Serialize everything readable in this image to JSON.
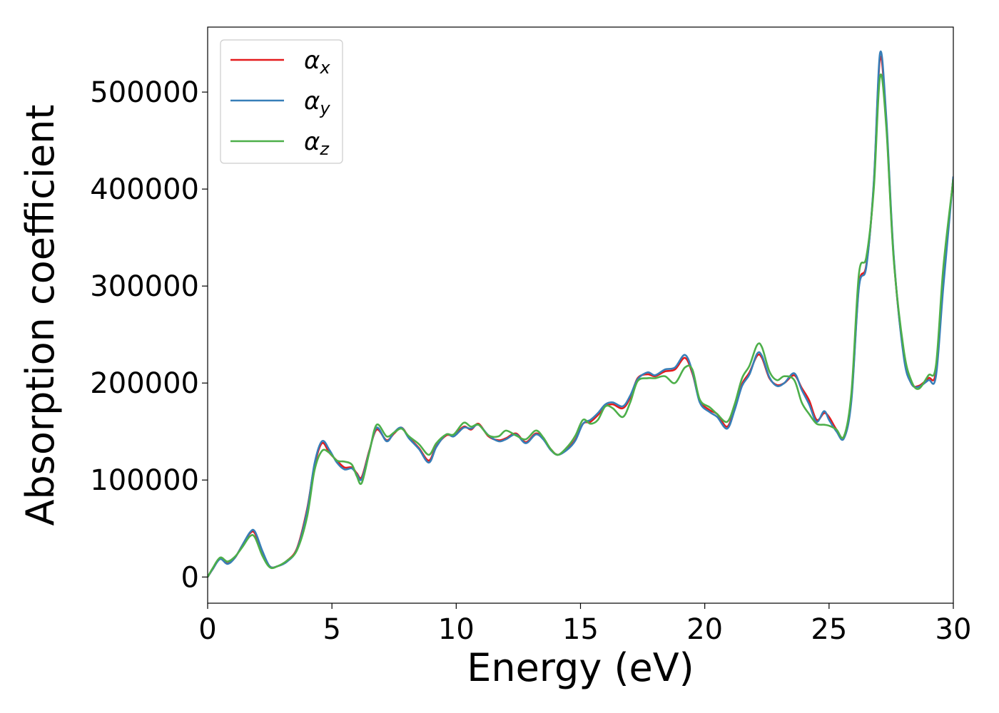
{
  "chart_data": {
    "type": "line",
    "title": "",
    "xlabel": "Energy (eV)",
    "ylabel": "Absorption coefficient",
    "xlim": [
      0,
      30
    ],
    "ylim": [
      -27000,
      567000
    ],
    "xticks": [
      0,
      5,
      10,
      15,
      20,
      25,
      30
    ],
    "xtick_labels": [
      "0",
      "5",
      "10",
      "15",
      "20",
      "25",
      "30"
    ],
    "yticks": [
      0,
      100000,
      200000,
      300000,
      400000,
      500000
    ],
    "ytick_labels": [
      "0",
      "100000",
      "200000",
      "300000",
      "400000",
      "500000"
    ],
    "grid": false,
    "legend_position": "top-left",
    "series": [
      {
        "name": "α",
        "sub": "x",
        "color": "#e41a1c",
        "points": [
          [
            0,
            0
          ],
          [
            0.2,
            8000
          ],
          [
            0.5,
            19000
          ],
          [
            0.8,
            14000
          ],
          [
            1.1,
            20000
          ],
          [
            1.4,
            33000
          ],
          [
            1.7,
            45000
          ],
          [
            1.9,
            45000
          ],
          [
            2.2,
            25000
          ],
          [
            2.5,
            11000
          ],
          [
            2.8,
            11000
          ],
          [
            3.2,
            17000
          ],
          [
            3.6,
            30000
          ],
          [
            4.0,
            70000
          ],
          [
            4.3,
            115000
          ],
          [
            4.6,
            138000
          ],
          [
            4.9,
            128000
          ],
          [
            5.2,
            120000
          ],
          [
            5.5,
            113000
          ],
          [
            5.8,
            113000
          ],
          [
            6.0,
            107000
          ],
          [
            6.2,
            103000
          ],
          [
            6.5,
            130000
          ],
          [
            6.8,
            152000
          ],
          [
            7.2,
            141000
          ],
          [
            7.5,
            148000
          ],
          [
            7.8,
            154000
          ],
          [
            8.1,
            144000
          ],
          [
            8.5,
            133000
          ],
          [
            8.9,
            120000
          ],
          [
            9.2,
            135000
          ],
          [
            9.6,
            146000
          ],
          [
            9.9,
            146000
          ],
          [
            10.3,
            155000
          ],
          [
            10.6,
            152000
          ],
          [
            10.9,
            158000
          ],
          [
            11.3,
            145000
          ],
          [
            11.7,
            141000
          ],
          [
            12.0,
            143000
          ],
          [
            12.4,
            148000
          ],
          [
            12.8,
            139000
          ],
          [
            13.2,
            148000
          ],
          [
            13.5,
            143000
          ],
          [
            13.8,
            132000
          ],
          [
            14.1,
            126000
          ],
          [
            14.5,
            133000
          ],
          [
            14.8,
            142000
          ],
          [
            15.1,
            158000
          ],
          [
            15.4,
            160000
          ],
          [
            15.7,
            167000
          ],
          [
            16.0,
            176000
          ],
          [
            16.3,
            178000
          ],
          [
            16.7,
            174000
          ],
          [
            17.0,
            185000
          ],
          [
            17.3,
            205000
          ],
          [
            17.7,
            209000
          ],
          [
            18.0,
            207000
          ],
          [
            18.4,
            212000
          ],
          [
            18.8,
            214000
          ],
          [
            19.2,
            226000
          ],
          [
            19.5,
            210000
          ],
          [
            19.8,
            182000
          ],
          [
            20.2,
            172000
          ],
          [
            20.5,
            168000
          ],
          [
            20.9,
            155000
          ],
          [
            21.2,
            174000
          ],
          [
            21.5,
            199000
          ],
          [
            21.8,
            211000
          ],
          [
            22.1,
            228000
          ],
          [
            22.3,
            226000
          ],
          [
            22.6,
            205000
          ],
          [
            22.9,
            198000
          ],
          [
            23.2,
            200000
          ],
          [
            23.6,
            208000
          ],
          [
            23.9,
            195000
          ],
          [
            24.2,
            182000
          ],
          [
            24.5,
            162000
          ],
          [
            24.8,
            169000
          ],
          [
            25.0,
            165000
          ],
          [
            25.3,
            152000
          ],
          [
            25.6,
            145000
          ],
          [
            25.9,
            185000
          ],
          [
            26.2,
            300000
          ],
          [
            26.5,
            322000
          ],
          [
            26.8,
            405000
          ],
          [
            27.05,
            535000
          ],
          [
            27.3,
            470000
          ],
          [
            27.6,
            330000
          ],
          [
            28.0,
            230000
          ],
          [
            28.3,
            200000
          ],
          [
            28.6,
            197000
          ],
          [
            29.0,
            205000
          ],
          [
            29.3,
            212000
          ],
          [
            29.6,
            310000
          ],
          [
            30.0,
            412000
          ]
        ]
      },
      {
        "name": "α",
        "sub": "y",
        "color": "#377eb8",
        "points": [
          [
            0,
            0
          ],
          [
            0.2,
            8000
          ],
          [
            0.5,
            18500
          ],
          [
            0.8,
            13500
          ],
          [
            1.1,
            20000
          ],
          [
            1.4,
            33000
          ],
          [
            1.7,
            46000
          ],
          [
            1.9,
            47000
          ],
          [
            2.2,
            27000
          ],
          [
            2.5,
            11000
          ],
          [
            2.8,
            11000
          ],
          [
            3.2,
            16000
          ],
          [
            3.6,
            29000
          ],
          [
            4.0,
            68000
          ],
          [
            4.3,
            117000
          ],
          [
            4.6,
            140000
          ],
          [
            4.9,
            131000
          ],
          [
            5.2,
            118000
          ],
          [
            5.5,
            111000
          ],
          [
            5.8,
            112000
          ],
          [
            6.0,
            106000
          ],
          [
            6.2,
            101000
          ],
          [
            6.5,
            129000
          ],
          [
            6.8,
            154000
          ],
          [
            7.2,
            140000
          ],
          [
            7.5,
            149000
          ],
          [
            7.8,
            154000
          ],
          [
            8.1,
            143000
          ],
          [
            8.5,
            132000
          ],
          [
            8.9,
            118000
          ],
          [
            9.2,
            134000
          ],
          [
            9.6,
            147000
          ],
          [
            9.9,
            145000
          ],
          [
            10.3,
            154000
          ],
          [
            10.6,
            153000
          ],
          [
            10.9,
            157000
          ],
          [
            11.3,
            146000
          ],
          [
            11.7,
            140000
          ],
          [
            12.0,
            142000
          ],
          [
            12.4,
            147000
          ],
          [
            12.8,
            138000
          ],
          [
            13.2,
            147000
          ],
          [
            13.5,
            142000
          ],
          [
            13.8,
            131000
          ],
          [
            14.1,
            126000
          ],
          [
            14.5,
            132000
          ],
          [
            14.8,
            141000
          ],
          [
            15.1,
            158000
          ],
          [
            15.4,
            162000
          ],
          [
            15.7,
            169000
          ],
          [
            16.0,
            178000
          ],
          [
            16.3,
            180000
          ],
          [
            16.7,
            176000
          ],
          [
            17.0,
            187000
          ],
          [
            17.3,
            204000
          ],
          [
            17.7,
            211000
          ],
          [
            18.0,
            208000
          ],
          [
            18.4,
            214000
          ],
          [
            18.8,
            216000
          ],
          [
            19.2,
            229000
          ],
          [
            19.5,
            212000
          ],
          [
            19.8,
            180000
          ],
          [
            20.2,
            170000
          ],
          [
            20.5,
            165000
          ],
          [
            20.9,
            153000
          ],
          [
            21.2,
            172000
          ],
          [
            21.5,
            197000
          ],
          [
            21.8,
            209000
          ],
          [
            22.1,
            230000
          ],
          [
            22.3,
            228000
          ],
          [
            22.6,
            206000
          ],
          [
            22.9,
            197000
          ],
          [
            23.2,
            200000
          ],
          [
            23.6,
            210000
          ],
          [
            23.9,
            193000
          ],
          [
            24.2,
            178000
          ],
          [
            24.5,
            160000
          ],
          [
            24.8,
            171000
          ],
          [
            25.0,
            162000
          ],
          [
            25.3,
            150000
          ],
          [
            25.6,
            143000
          ],
          [
            25.9,
            182000
          ],
          [
            26.2,
            298000
          ],
          [
            26.5,
            320000
          ],
          [
            26.8,
            407000
          ],
          [
            27.05,
            540000
          ],
          [
            27.3,
            475000
          ],
          [
            27.6,
            332000
          ],
          [
            28.0,
            228000
          ],
          [
            28.3,
            200000
          ],
          [
            28.6,
            196000
          ],
          [
            29.0,
            203000
          ],
          [
            29.3,
            207000
          ],
          [
            29.6,
            300000
          ],
          [
            30.0,
            413000
          ]
        ]
      },
      {
        "name": "α",
        "sub": "z",
        "color": "#4daf4a",
        "points": [
          [
            0,
            0
          ],
          [
            0.2,
            9000
          ],
          [
            0.5,
            20000
          ],
          [
            0.8,
            16000
          ],
          [
            1.1,
            21000
          ],
          [
            1.4,
            31000
          ],
          [
            1.7,
            42000
          ],
          [
            1.9,
            41000
          ],
          [
            2.2,
            22000
          ],
          [
            2.5,
            10000
          ],
          [
            2.8,
            11000
          ],
          [
            3.2,
            17000
          ],
          [
            3.6,
            28000
          ],
          [
            4.0,
            62000
          ],
          [
            4.3,
            110000
          ],
          [
            4.6,
            130000
          ],
          [
            4.9,
            128000
          ],
          [
            5.2,
            120000
          ],
          [
            5.5,
            119000
          ],
          [
            5.8,
            116000
          ],
          [
            6.0,
            104000
          ],
          [
            6.2,
            97000
          ],
          [
            6.5,
            128000
          ],
          [
            6.8,
            157000
          ],
          [
            7.2,
            145000
          ],
          [
            7.5,
            149000
          ],
          [
            7.8,
            153000
          ],
          [
            8.1,
            145000
          ],
          [
            8.5,
            137000
          ],
          [
            8.9,
            126000
          ],
          [
            9.2,
            138000
          ],
          [
            9.6,
            147000
          ],
          [
            9.9,
            147000
          ],
          [
            10.3,
            159000
          ],
          [
            10.6,
            155000
          ],
          [
            10.9,
            157000
          ],
          [
            11.3,
            146000
          ],
          [
            11.7,
            145000
          ],
          [
            12.0,
            151000
          ],
          [
            12.4,
            146000
          ],
          [
            12.8,
            142000
          ],
          [
            13.2,
            151000
          ],
          [
            13.5,
            144000
          ],
          [
            13.8,
            132000
          ],
          [
            14.1,
            126000
          ],
          [
            14.5,
            135000
          ],
          [
            14.8,
            146000
          ],
          [
            15.1,
            162000
          ],
          [
            15.4,
            158000
          ],
          [
            15.7,
            162000
          ],
          [
            16.0,
            176000
          ],
          [
            16.3,
            174000
          ],
          [
            16.7,
            165000
          ],
          [
            17.0,
            180000
          ],
          [
            17.3,
            202000
          ],
          [
            17.7,
            205000
          ],
          [
            18.0,
            205000
          ],
          [
            18.4,
            207000
          ],
          [
            18.8,
            200000
          ],
          [
            19.2,
            216000
          ],
          [
            19.5,
            214000
          ],
          [
            19.8,
            183000
          ],
          [
            20.2,
            175000
          ],
          [
            20.5,
            168000
          ],
          [
            20.9,
            160000
          ],
          [
            21.2,
            178000
          ],
          [
            21.5,
            205000
          ],
          [
            21.8,
            218000
          ],
          [
            22.1,
            239000
          ],
          [
            22.3,
            237000
          ],
          [
            22.6,
            212000
          ],
          [
            22.9,
            203000
          ],
          [
            23.2,
            207000
          ],
          [
            23.6,
            203000
          ],
          [
            23.9,
            180000
          ],
          [
            24.2,
            168000
          ],
          [
            24.5,
            158000
          ],
          [
            24.8,
            157000
          ],
          [
            25.0,
            156000
          ],
          [
            25.3,
            152000
          ],
          [
            25.6,
            145000
          ],
          [
            25.9,
            190000
          ],
          [
            26.2,
            312000
          ],
          [
            26.5,
            330000
          ],
          [
            26.8,
            400000
          ],
          [
            27.05,
            516000
          ],
          [
            27.3,
            465000
          ],
          [
            27.6,
            328000
          ],
          [
            28.0,
            235000
          ],
          [
            28.3,
            203000
          ],
          [
            28.6,
            194000
          ],
          [
            29.0,
            208000
          ],
          [
            29.3,
            218000
          ],
          [
            29.6,
            320000
          ],
          [
            30.0,
            410000
          ]
        ]
      }
    ]
  }
}
